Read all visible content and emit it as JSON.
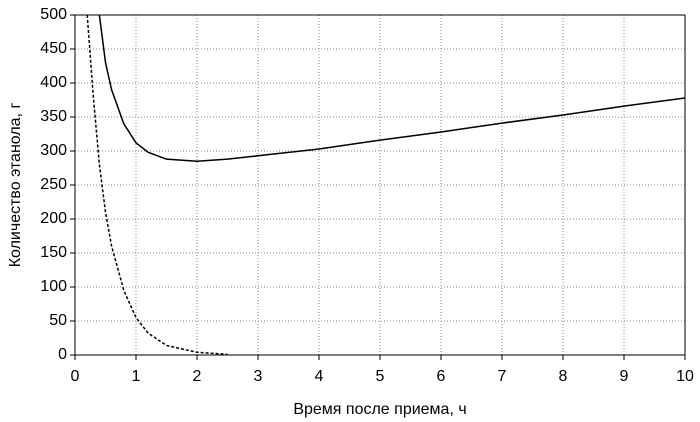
{
  "chart_data": {
    "type": "line",
    "xlabel": "Время после приема, ч",
    "ylabel": "Количество этанола, г",
    "x": [
      0.2,
      0.3,
      0.4,
      0.5,
      0.6,
      0.8,
      1,
      1.2,
      1.5,
      2,
      2.5,
      3,
      4,
      5,
      6,
      7,
      8,
      9,
      10
    ],
    "series": [
      {
        "color": "#000000",
        "line_style": "solid",
        "values": [
          null,
          null,
          500,
          430,
          390,
          340,
          312,
          298,
          288,
          285,
          288,
          293,
          303,
          316,
          328,
          341,
          353,
          366,
          378
        ]
      },
      {
        "color": "#000000",
        "line_style": "dashed",
        "values": [
          500,
          380,
          280,
          210,
          160,
          95,
          55,
          32,
          14,
          4,
          1,
          null,
          null,
          null,
          null,
          null,
          null,
          null,
          null
        ]
      }
    ],
    "xlim": [
      0,
      10
    ],
    "xticks": [
      0,
      1,
      2,
      3,
      4,
      5,
      6,
      7,
      8,
      9,
      10
    ],
    "ylim": [
      0,
      500
    ],
    "yticks": [
      0,
      50,
      100,
      150,
      200,
      250,
      300,
      350,
      400,
      450,
      500
    ],
    "grid": true
  }
}
